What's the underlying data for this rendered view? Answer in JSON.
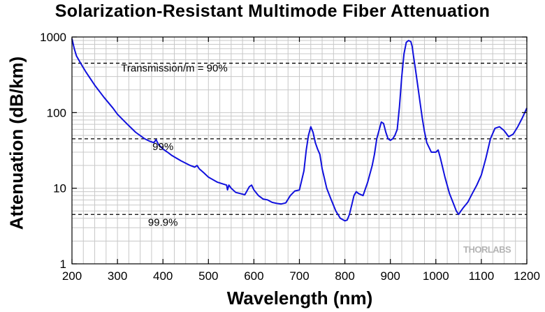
{
  "chart_data": {
    "type": "line",
    "title": "Solarization-Resistant Multimode Fiber Attenuation",
    "xlabel": "Wavelength (nm)",
    "ylabel": "Attenuation (dB/km)",
    "xlim": [
      200,
      1200
    ],
    "ylim": [
      1,
      1000
    ],
    "yscale": "log",
    "grid": true,
    "x_ticks": [
      "200",
      "300",
      "400",
      "500",
      "600",
      "700",
      "800",
      "900",
      "1000",
      "1100",
      "1200"
    ],
    "y_ticks": [
      "1",
      "10",
      "100",
      "1000"
    ],
    "line_color": "#1010dd",
    "series": [
      {
        "x": [
          200,
          205,
          210,
          220,
          230,
          250,
          270,
          290,
          300,
          320,
          340,
          360,
          370,
          380,
          385,
          390,
          400,
          410,
          420,
          440,
          460,
          470,
          475,
          480,
          490,
          500,
          520,
          540,
          542,
          545,
          550,
          560,
          570,
          580,
          590,
          595,
          600,
          610,
          620,
          630,
          640,
          650,
          660,
          670,
          680,
          690,
          700,
          710,
          715,
          720,
          725,
          730,
          735,
          740,
          745,
          750,
          760,
          770,
          780,
          790,
          800,
          805,
          810,
          815,
          820,
          825,
          830,
          840,
          850,
          860,
          865,
          870,
          875,
          880,
          885,
          890,
          895,
          900,
          905,
          910,
          915,
          920,
          925,
          930,
          935,
          940,
          945,
          948,
          950,
          955,
          960,
          965,
          970,
          975,
          980,
          990,
          1000,
          1005,
          1010,
          1020,
          1030,
          1040,
          1045,
          1050,
          1055,
          1060,
          1070,
          1080,
          1090,
          1100,
          1110,
          1120,
          1130,
          1140,
          1150,
          1160,
          1170,
          1180,
          1190,
          1200
        ],
        "values": [
          950,
          700,
          560,
          440,
          350,
          230,
          160,
          115,
          95,
          72,
          55,
          45,
          42,
          40,
          44,
          38,
          33,
          30,
          27,
          23,
          20,
          19,
          20,
          18,
          16,
          14,
          12,
          11,
          9.5,
          11,
          10,
          8.8,
          8.5,
          8.2,
          10.5,
          11,
          9.5,
          8,
          7.2,
          7,
          6.5,
          6.3,
          6.2,
          6.4,
          8,
          9.2,
          9.5,
          17,
          32,
          50,
          65,
          55,
          40,
          33,
          28,
          18,
          10,
          7,
          5,
          4,
          3.7,
          3.8,
          4.5,
          6,
          8,
          9,
          8.5,
          8,
          12,
          20,
          28,
          45,
          58,
          75,
          72,
          55,
          45,
          43,
          45,
          50,
          60,
          120,
          300,
          600,
          850,
          900,
          870,
          750,
          600,
          380,
          230,
          140,
          85,
          56,
          40,
          30,
          30,
          32,
          25,
          14,
          8.5,
          6,
          5,
          4.5,
          5,
          5.5,
          6.5,
          8.5,
          11,
          15,
          25,
          45,
          62,
          65,
          58,
          48,
          52,
          65,
          85,
          115
        ]
      }
    ],
    "reference_lines": [
      {
        "y": 45,
        "label": ""
      },
      {
        "y": 4.5,
        "label": ""
      },
      {
        "y": 450,
        "label": ""
      }
    ],
    "annotations": [
      {
        "text": "Transmission/m = 90%",
        "x": 425,
        "y": 350
      },
      {
        "text": "99%",
        "x": 400,
        "y": 32
      },
      {
        "text": "99.9%",
        "x": 400,
        "y": 3.2
      }
    ],
    "watermark": "THORLABS"
  }
}
